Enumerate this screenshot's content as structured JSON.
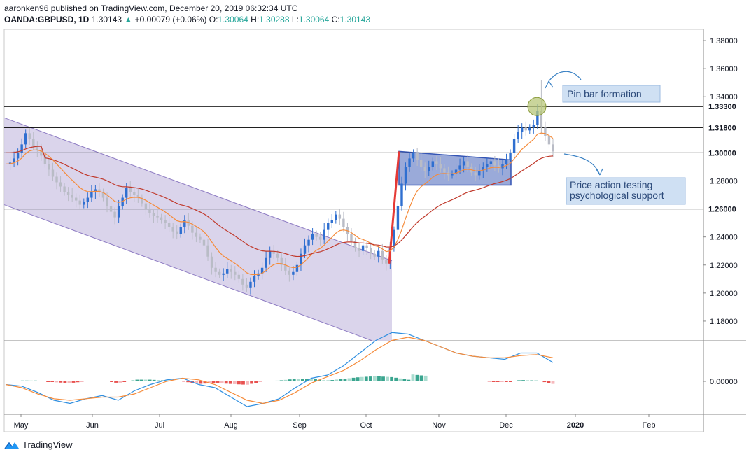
{
  "header": {
    "publisher_line": "aaronken96 published on TradingView.com, December 20, 2019 06:32:34 UTC",
    "symbol": "OANDA:GBPUSD, 1D",
    "last": "1.30143",
    "change": "+0.00079 (+0.06%)",
    "o_label": "O:",
    "o_value": "1.30064",
    "h_label": "H:",
    "h_value": "1.30288",
    "l_label": "L:",
    "l_value": "1.30064",
    "c_label": "C:",
    "c_value": "1.30143"
  },
  "footer": {
    "brand": "TradingView"
  },
  "colors": {
    "up": "#2f6fd0",
    "down": "#b9bcc6",
    "ema_fast": "#f58b3a",
    "ema_slow": "#c0392b",
    "channel": "#d3cde7",
    "box": "#6f86c9",
    "hist_pos": "#3aa58f",
    "hist_pos_light": "#a9dccf",
    "hist_neg": "#e8514f",
    "hist_neg_light": "#f6b9bd",
    "macd": "#2f8fe0",
    "signal": "#f58b3a"
  },
  "chart_data": {
    "type": "candlestick",
    "title": "",
    "x_ticks": [
      "May",
      "Jun",
      "Jul",
      "Aug",
      "Sep",
      "Oct",
      "Nov",
      "Dec",
      "2020",
      "Feb"
    ],
    "y_ticks": [
      "1.38000",
      "1.36000",
      "1.34000",
      "1.32000",
      "1.30000",
      "1.28000",
      "1.26000",
      "1.24000",
      "1.22000",
      "1.20000",
      "1.18000"
    ],
    "ylim": [
      1.166,
      1.388
    ],
    "highlighted_levels": [
      "1.33300",
      "1.31800",
      "1.30000",
      "1.26000"
    ],
    "annotations": [
      {
        "text": "Pin bar formation"
      },
      {
        "text": "Price action testing\npsychological support"
      }
    ],
    "indicator": {
      "zero_label": "0.00000",
      "macd": [
        -0.1,
        -0.15,
        -0.35,
        -0.6,
        -0.7,
        -0.55,
        -0.45,
        -0.6,
        -0.3,
        -0.1,
        0.05,
        0.1,
        -0.1,
        -0.2,
        -0.5,
        -0.8,
        -0.7,
        -0.55,
        -0.2,
        0.1,
        0.2,
        0.5,
        0.9,
        1.3,
        1.55,
        1.5,
        1.3,
        1.1,
        0.9,
        0.8,
        0.75,
        0.7,
        0.9,
        0.9,
        0.6
      ],
      "signal": [
        -0.1,
        -0.2,
        -0.4,
        -0.55,
        -0.6,
        -0.55,
        -0.5,
        -0.5,
        -0.4,
        -0.2,
        0.0,
        0.1,
        0.05,
        -0.1,
        -0.35,
        -0.6,
        -0.7,
        -0.6,
        -0.35,
        -0.05,
        0.15,
        0.35,
        0.65,
        1.0,
        1.3,
        1.4,
        1.3,
        1.1,
        0.9,
        0.8,
        0.75,
        0.75,
        0.82,
        0.85,
        0.75
      ]
    }
  }
}
